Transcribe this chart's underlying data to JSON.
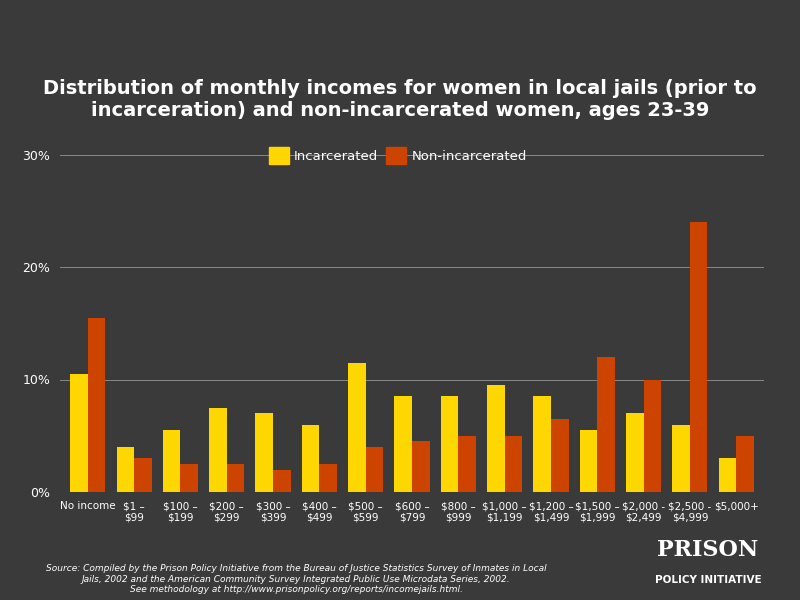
{
  "title": "Distribution of monthly incomes for women in local jails (prior to\nincarceration) and non-incarcerated women, ages 23-39",
  "categories": [
    "No income",
    "$1 –\n$99",
    "$100 –\n$199",
    "$200 –\n$299",
    "$300 –\n$399",
    "$400 –\n$499",
    "$500 –\n$599",
    "$600 –\n$799",
    "$800 –\n$999",
    "$1,000 –\n$1,199",
    "$1,200 –\n$1,499",
    "$1,500 –\n$1,999",
    "$2,000 -\n$2,499",
    "$2,500 -\n$4,999",
    "$5,000+"
  ],
  "incarcerated": [
    10.5,
    4.0,
    5.5,
    7.5,
    7.0,
    6.0,
    11.5,
    8.5,
    8.5,
    9.5,
    8.5,
    5.5,
    7.0,
    6.0,
    3.0
  ],
  "non_incarcerated": [
    15.5,
    3.0,
    2.5,
    2.5,
    2.0,
    2.5,
    4.0,
    4.5,
    5.0,
    5.0,
    6.5,
    12.0,
    10.0,
    24.0,
    5.0
  ],
  "color_incarcerated": "#FFD700",
  "color_non_incarcerated": "#CC4400",
  "background_color": "#3a3a3a",
  "text_color": "#ffffff",
  "grid_color": "#888888",
  "yticks": [
    0,
    10,
    20,
    30
  ],
  "ylim": [
    0,
    32
  ],
  "source": "Source: Compiled by the Prison Policy Initiative from the Bureau of Justice Statistics Survey of Inmates in Local\nJails, 2002 and the American Community Survey Integrated Public Use Microdata Series, 2002.\nSee methodology at http://www.prisonpolicy.org/reports/incomejails.html.",
  "logo_text1": "PRISON",
  "logo_text2": "POLICY INITIATIVE",
  "legend_incarcerated": "Incarcerated",
  "legend_non_incarcerated": "Non-incarcerated",
  "bar_width": 0.38,
  "title_fontsize": 14,
  "tick_fontsize": 7.5,
  "ytick_fontsize": 9,
  "legend_fontsize": 9.5,
  "source_fontsize": 6.5,
  "logo1_fontsize": 16,
  "logo2_fontsize": 7.5
}
